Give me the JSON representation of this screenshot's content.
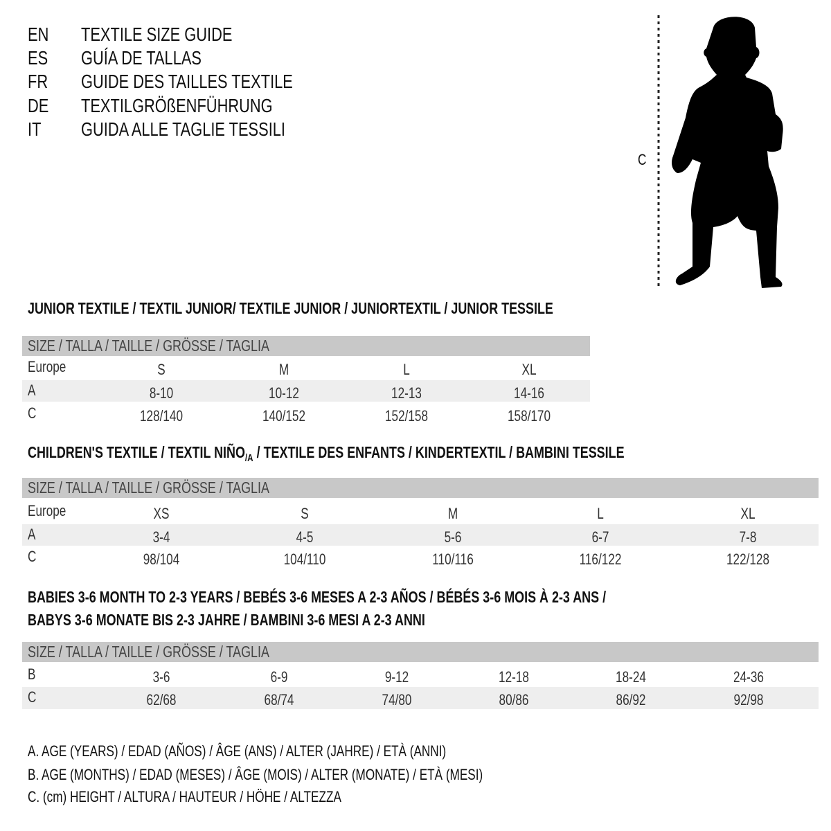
{
  "header": {
    "lines": [
      {
        "lang": "EN",
        "text": "TEXTILE SIZE GUIDE"
      },
      {
        "lang": "ES",
        "text": "GUÍA DE TALLAS"
      },
      {
        "lang": "FR",
        "text": "GUIDE DES TAILLES TEXTILE"
      },
      {
        "lang": "DE",
        "text": "TEXTILGRÖßENFÜHRUNG"
      },
      {
        "lang": "IT",
        "text": "GUIDA ALLE TAGLIE TESSILI"
      }
    ]
  },
  "figure": {
    "label": "C",
    "icon": "child-silhouette-icon"
  },
  "junior": {
    "title": "JUNIOR TEXTILE / TEXTIL JUNIOR/ TEXTILE JUNIOR / JUNIORTEXTIL / JUNIOR TESSILE",
    "size_header": "SIZE / TALLA / TAILLE / GRÖSSE / TAGLIA",
    "rows": [
      {
        "label": "Europe",
        "values": [
          "S",
          "M",
          "L",
          "XL"
        ]
      },
      {
        "label": "A",
        "values": [
          "8-10",
          "10-12",
          "12-13",
          "14-16"
        ]
      },
      {
        "label": "C",
        "values": [
          "128/140",
          "140/152",
          "152/158",
          "158/170"
        ]
      }
    ]
  },
  "children": {
    "title_pre": "CHILDREN'S TEXTILE / TEXTIL NIÑO",
    "title_sub": "/A",
    "title_post": " / TEXTILE DES ENFANTS / KINDERTEXTIL / BAMBINI TESSILE",
    "size_header": "SIZE / TALLA / TAILLE / GRÖSSE / TAGLIA",
    "rows": [
      {
        "label": "Europe",
        "values": [
          "XS",
          "S",
          "M",
          "L",
          "XL"
        ]
      },
      {
        "label": "A",
        "values": [
          "3-4",
          "4-5",
          "5-6",
          "6-7",
          "7-8"
        ]
      },
      {
        "label": "C",
        "values": [
          "98/104",
          "104/110",
          "110/116",
          "116/122",
          "122/128"
        ]
      }
    ]
  },
  "babies": {
    "title_line1": "BABIES 3-6 MONTH TO 2-3 YEARS / BEBÉS 3-6 MESES A 2-3 AÑOS / BÉBÉS 3-6 MOIS À 2-3 ANS /",
    "title_line2": "BABYS 3-6 MONATE BIS 2-3 JAHRE / BAMBINI 3-6 MESI A 2-3 ANNI",
    "size_header": "SIZE / TALLA / TAILLE / GRÖSSE / TAGLIA",
    "rows": [
      {
        "label": "B",
        "values": [
          "3-6",
          "6-9",
          "9-12",
          "12-18",
          "18-24",
          "24-36"
        ]
      },
      {
        "label": "C",
        "values": [
          "62/68",
          "68/74",
          "74/80",
          "80/86",
          "86/92",
          "92/98"
        ]
      }
    ]
  },
  "legend": [
    "A. AGE (YEARS) / EDAD (AÑOS) / ÂGE (ANS) / ALTER (JAHRE) / ETÀ (ANNI)",
    "B. AGE (MONTHS) / EDAD (MESES) / ÂGE (MOIS) / ALTER (MONATE) / ETÀ (MESI)",
    "C. (cm) HEIGHT / ALTURA / HAUTEUR / HÖHE / ALTEZZA"
  ]
}
